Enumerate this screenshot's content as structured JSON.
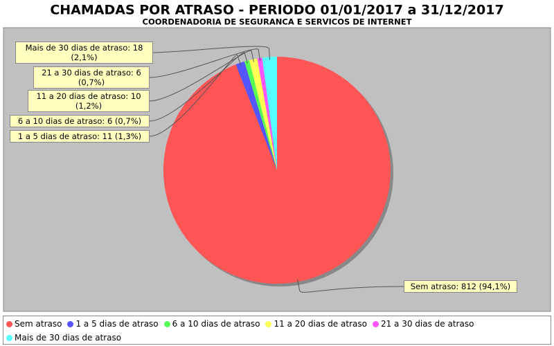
{
  "chart_data": {
    "type": "pie",
    "title": "CHAMADAS POR ATRASO - PERIODO 01/01/2017 a 31/12/2017",
    "subtitle": "COORDENADORIA DE SEGURANCA E SERVICOS DE INTERNET",
    "categories": [
      "Sem atraso",
      "1 a 5 dias de atraso",
      "6 a 10 dias de atraso",
      "11 a 20 dias de atraso",
      "21 a 30 dias de atraso",
      "Mais de 30 dias de atraso"
    ],
    "values": [
      812,
      11,
      6,
      10,
      6,
      18
    ],
    "value_labels": [
      "Sem atraso: 812 (94,1%)",
      "1 a 5 dias de atraso: 11 (1,3%)",
      "6 a 10 dias de atraso: 6 (0,7%)",
      "11 a 20 dias de atraso: 10 (1,2%)",
      "21 a 30 dias de atraso: 6 (0,7%)",
      "Mais de 30 dias de atraso: 18 (2,1%)"
    ],
    "colors": [
      "#ff5555",
      "#5555ff",
      "#55ff55",
      "#ffff55",
      "#ff55ff",
      "#55ffff"
    ]
  }
}
